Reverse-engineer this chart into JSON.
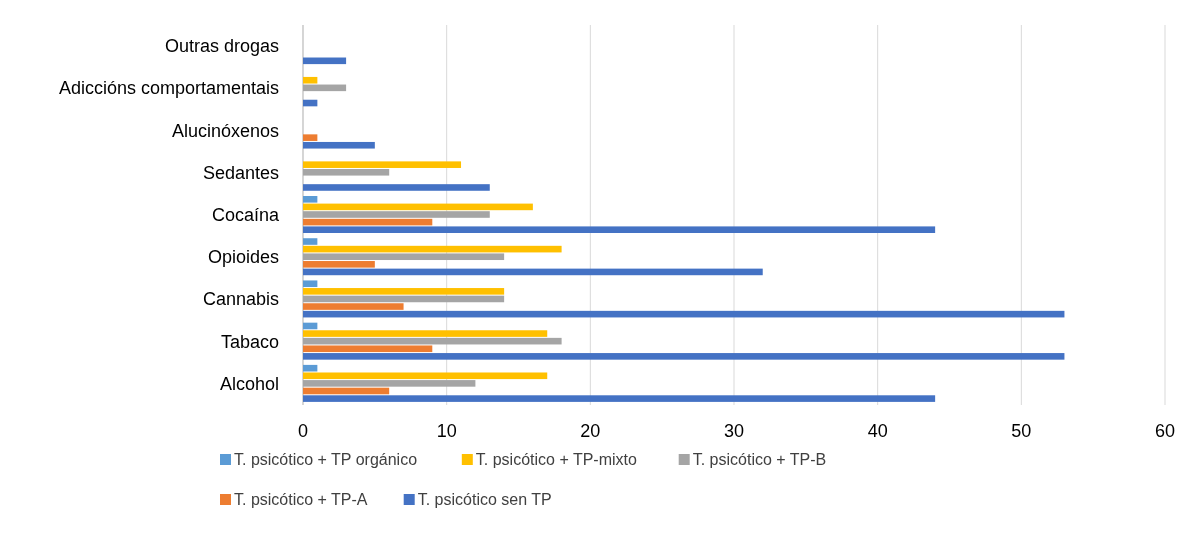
{
  "chart_data": {
    "type": "bar",
    "orientation": "horizontal",
    "categories": [
      "Outras drogas",
      "Adiccións comportamentais",
      "Alucinóxenos",
      "Sedantes",
      "Cocaína",
      "Opioides",
      "Cannabis",
      "Tabaco",
      "Alcohol"
    ],
    "series": [
      {
        "name": "T. psicótico + TP orgánico",
        "color": "#5b9bd5",
        "values": [
          0,
          0,
          0,
          0,
          1,
          1,
          1,
          1,
          1
        ]
      },
      {
        "name": "T. psicótico + TP-mixto",
        "color": "#ffc000",
        "values": [
          0,
          1,
          0,
          11,
          16,
          18,
          14,
          17,
          17
        ]
      },
      {
        "name": "T. psicótico + TP-B",
        "color": "#a5a5a5",
        "values": [
          0,
          3,
          0,
          6,
          13,
          14,
          14,
          18,
          12
        ]
      },
      {
        "name": "T. psicótico + TP-A",
        "color": "#ed7d31",
        "values": [
          0,
          0,
          1,
          0,
          9,
          5,
          7,
          9,
          6
        ]
      },
      {
        "name": "T. psicótico sen TP",
        "color": "#4472c4",
        "values": [
          3,
          1,
          5,
          13,
          44,
          32,
          53,
          53,
          44
        ]
      }
    ],
    "xlim": [
      0,
      60
    ],
    "xticks": [
      0,
      10,
      20,
      30,
      40,
      50,
      60
    ],
    "grid": "x",
    "legend": "bottom"
  }
}
